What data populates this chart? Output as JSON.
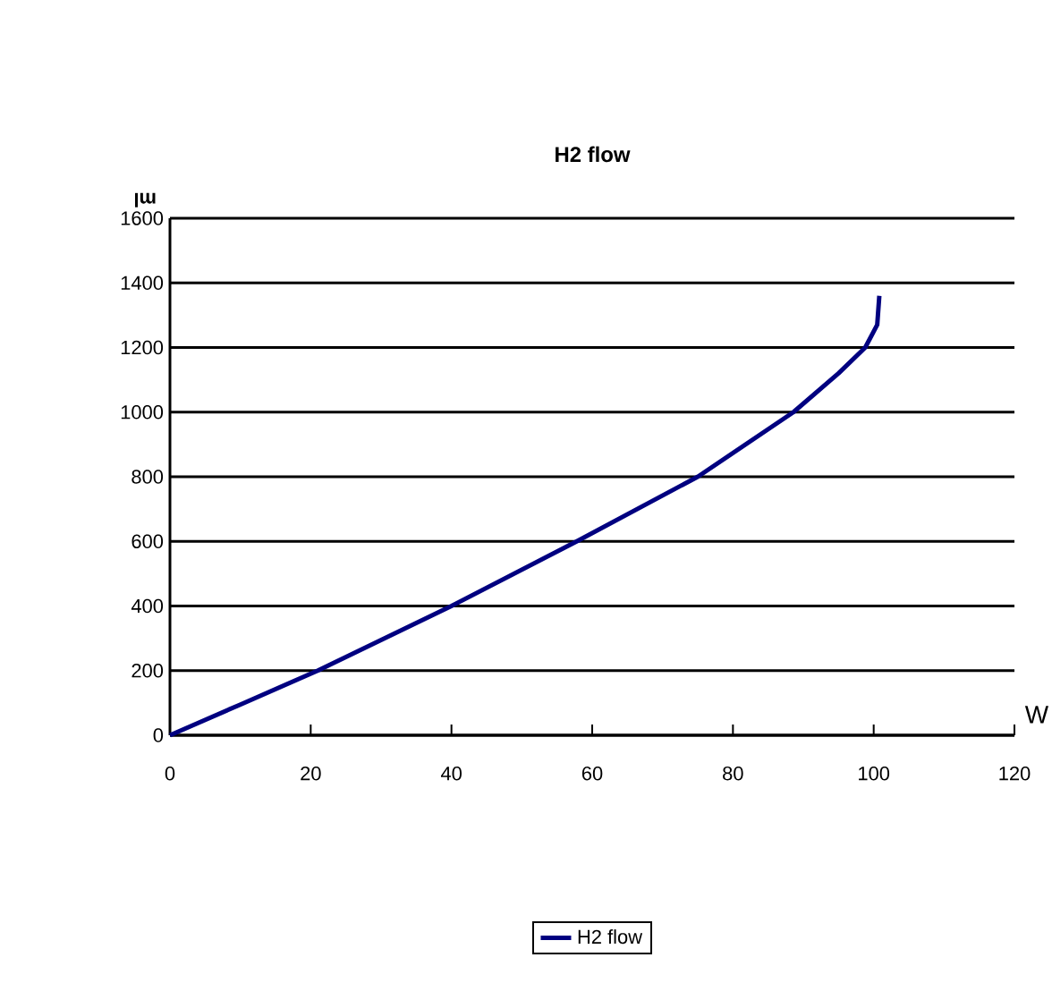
{
  "chart_data": {
    "type": "line",
    "title": "H2 flow",
    "xlabel": "W",
    "ylabel": "ml",
    "x": [
      0,
      10,
      21,
      40,
      57.8,
      75,
      88.6,
      95,
      98.8,
      100.5,
      100.8
    ],
    "series": [
      {
        "name": "H2 flow",
        "color": "#000080",
        "values": [
          0,
          95,
          200,
          400,
          600,
          800,
          1000,
          1120,
          1200,
          1270,
          1360
        ]
      }
    ],
    "xlim": [
      0,
      120
    ],
    "ylim": [
      0,
      1600
    ],
    "xticks": [
      0,
      20,
      40,
      60,
      80,
      100,
      120
    ],
    "yticks": [
      0,
      200,
      400,
      600,
      800,
      1000,
      1200,
      1400,
      1600
    ],
    "grid": "y",
    "legend": "bottom",
    "marker": "none",
    "line_style": "solid"
  }
}
